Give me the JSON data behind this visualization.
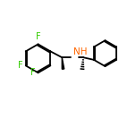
{
  "background_color": "#ffffff",
  "bond_color": "#000000",
  "F_color": "#33cc00",
  "N_color": "#ff6600",
  "line_width": 1.3,
  "figsize": [
    1.52,
    1.52
  ],
  "dpi": 100,
  "xlim": [
    0,
    10
  ],
  "ylim": [
    1.5,
    8.5
  ],
  "font_size_atom": 7.0
}
